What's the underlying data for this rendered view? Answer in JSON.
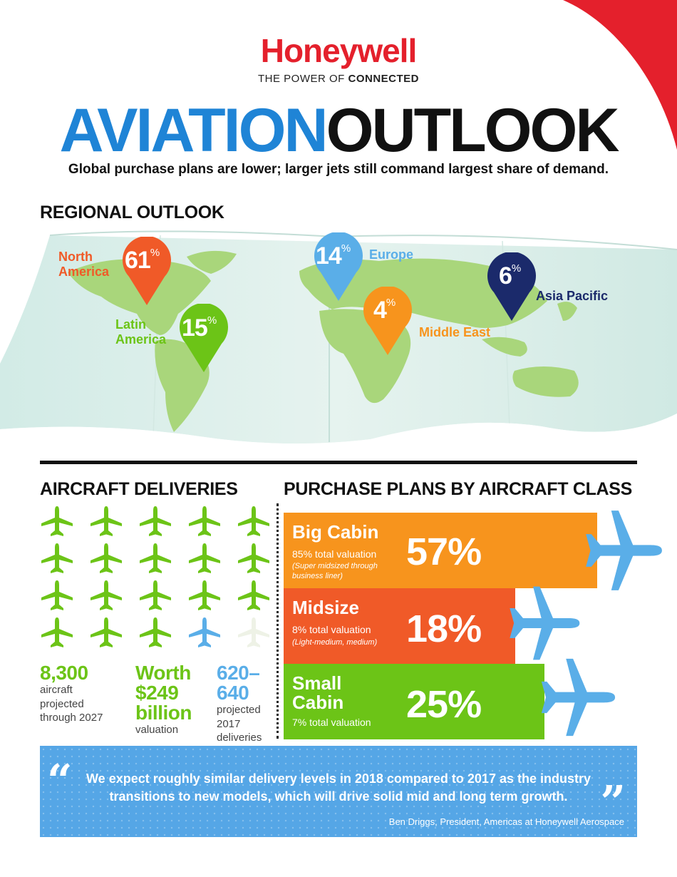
{
  "header": {
    "brand": "Honeywell",
    "tagline_prefix": "THE POWER OF",
    "tagline_bold": "CONNECTED",
    "title_part1": "AVIATION",
    "title_part2": "OUTLOOK",
    "subtitle": "Global purchase plans are lower; larger jets still command largest share of demand."
  },
  "colors": {
    "brand_red": "#e4202c",
    "title_blue": "#1f84d6",
    "north_america": "#f05a28",
    "latin_america": "#6cc417",
    "europe": "#5aaee8",
    "middle_east": "#f7941d",
    "asia_pacific": "#1b2a6b",
    "big_cabin": "#f7941d",
    "midsize": "#f05a28",
    "small_cabin": "#6cc417",
    "plane_blue": "#5aaee8"
  },
  "regional": {
    "heading": "REGIONAL OUTLOOK",
    "regions": [
      {
        "name_line1": "North",
        "name_line2": "America",
        "value": "61",
        "unit": "%"
      },
      {
        "name_line1": "Latin",
        "name_line2": "America",
        "value": "15",
        "unit": "%"
      },
      {
        "name_line1": "Europe",
        "name_line2": "",
        "value": "14",
        "unit": "%"
      },
      {
        "name_line1": "Middle East",
        "name_line2": "",
        "value": "4",
        "unit": "%"
      },
      {
        "name_line1": "Asia Pacific",
        "name_line2": "",
        "value": "6",
        "unit": "%"
      }
    ]
  },
  "deliveries": {
    "heading": "AIRCRAFT DELIVERIES",
    "icon": "plane-icon",
    "stat1": {
      "big": "8,300",
      "line1": "aircraft",
      "line2": "projected",
      "line3": "through 2027"
    },
    "stat2": {
      "big1": "Worth",
      "big2": "$249",
      "big3": "billion",
      "line1": "valuation"
    },
    "stat3": {
      "big1": "620–",
      "big2": "640",
      "line1": "projected",
      "line2": "2017",
      "line3": "deliveries"
    }
  },
  "purchase": {
    "heading": "PURCHASE PLANS BY AIRCRAFT CLASS",
    "classes": [
      {
        "name": "Big Cabin",
        "valuation": "85% total valuation",
        "note_line1": "(Super midsized through",
        "note_line2": "business liner)",
        "percent": "57%"
      },
      {
        "name": "Midsize",
        "valuation": "8% total valuation",
        "note_line1": "(Light-medium, medium)",
        "note_line2": "",
        "percent": "18%"
      },
      {
        "name_line1": "Small",
        "name_line2": "Cabin",
        "valuation": "7% total valuation",
        "percent": "25%"
      }
    ]
  },
  "quote": {
    "line1": "We expect roughly similar delivery levels in 2018 compared to 2017 as the industry",
    "line2": "transitions to new models, which will drive solid mid and long term growth.",
    "attribution": "Ben Driggs, President, Americas at Honeywell Aerospace"
  }
}
